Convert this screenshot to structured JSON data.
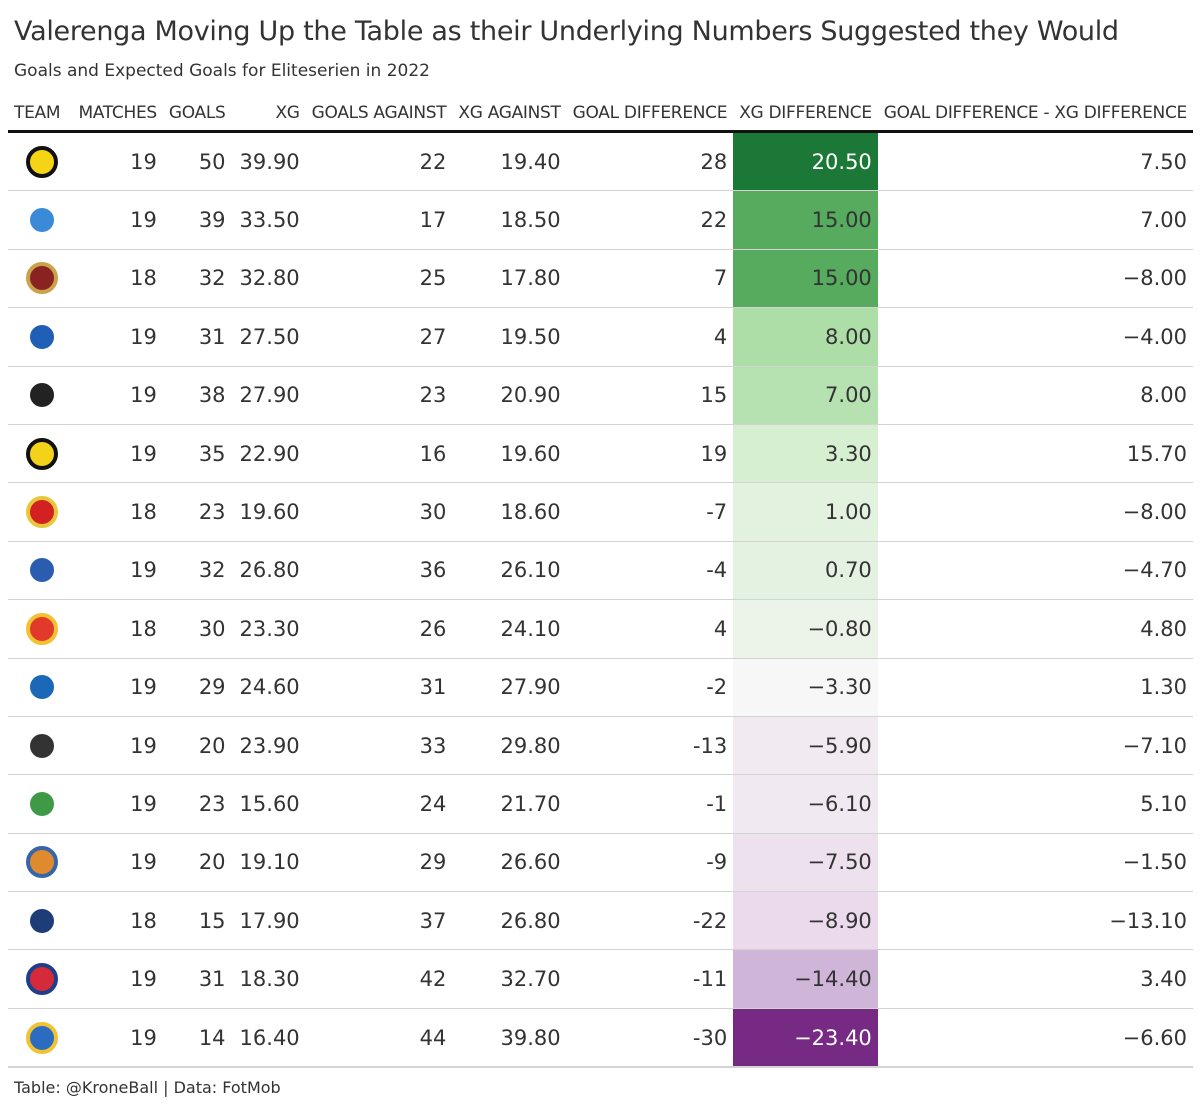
{
  "chart_data": {
    "type": "table",
    "title": "Valerenga Moving Up the Table as their Underlying Numbers Suggested they Would",
    "subtitle": "Goals and Expected Goals for Eliteserien in 2022",
    "columns": [
      "TEAM",
      "MATCHES",
      "GOALS",
      "XG",
      "GOALS AGAINST",
      "XG AGAINST",
      "GOAL DIFFERENCE",
      "XG DIFFERENCE",
      "GOAL DIFFERENCE - XG DIFFERENCE"
    ],
    "rows": [
      {
        "logo": "bodo-glimt-logo",
        "color": "#f5d415",
        "ring": "#111",
        "matches": "19",
        "goals": "50",
        "xg": "39.90",
        "ga": "22",
        "xga": "19.40",
        "gd": "28",
        "xgd": "20.50",
        "diff": "7.50"
      },
      {
        "logo": "molde-logo",
        "color": "#3a8ad8",
        "ring": "#fff",
        "matches": "19",
        "goals": "39",
        "xg": "33.50",
        "ga": "17",
        "xga": "18.50",
        "gd": "22",
        "xgd": "15.00",
        "diff": "7.00"
      },
      {
        "logo": "viking-logo",
        "color": "#8b2222",
        "ring": "#c9a24a",
        "matches": "18",
        "goals": "32",
        "xg": "32.80",
        "ga": "25",
        "xga": "17.80",
        "gd": "7",
        "xgd": "15.00",
        "diff": "−8.00"
      },
      {
        "logo": "valerenga-logo",
        "color": "#1f5fb5",
        "ring": "#fff",
        "matches": "19",
        "goals": "31",
        "xg": "27.50",
        "ga": "27",
        "xga": "19.50",
        "gd": "4",
        "xgd": "8.00",
        "diff": "−4.00"
      },
      {
        "logo": "rosenborg-logo",
        "color": "#222",
        "ring": "#fff",
        "matches": "19",
        "goals": "38",
        "xg": "27.90",
        "ga": "23",
        "xga": "20.90",
        "gd": "15",
        "xgd": "7.00",
        "diff": "8.00"
      },
      {
        "logo": "lillestrom-logo",
        "color": "#f3d21a",
        "ring": "#111",
        "matches": "19",
        "goals": "35",
        "xg": "22.90",
        "ga": "16",
        "xga": "19.60",
        "gd": "19",
        "xgd": "3.30",
        "diff": "15.70"
      },
      {
        "logo": "tromso-logo",
        "color": "#d32020",
        "ring": "#e8c83a",
        "matches": "18",
        "goals": "23",
        "xg": "19.60",
        "ga": "30",
        "xga": "18.60",
        "gd": "-7",
        "xgd": "1.00",
        "diff": "−8.00"
      },
      {
        "logo": "sarpsborg-logo",
        "color": "#2a5db0",
        "ring": "#fff",
        "matches": "19",
        "goals": "32",
        "xg": "26.80",
        "ga": "36",
        "xga": "26.10",
        "gd": "-4",
        "xgd": "0.70",
        "diff": "−4.70"
      },
      {
        "logo": "stromsgodset-logo",
        "color": "#e23a2a",
        "ring": "#f2c230",
        "matches": "18",
        "goals": "30",
        "xg": "23.30",
        "ga": "26",
        "xga": "24.10",
        "gd": "4",
        "xgd": "−0.80",
        "diff": "4.80"
      },
      {
        "logo": "haugesund-logo",
        "color": "#1b67b8",
        "ring": "#fff",
        "matches": "19",
        "goals": "29",
        "xg": "24.60",
        "ga": "31",
        "xga": "27.90",
        "gd": "-2",
        "xgd": "−3.30",
        "diff": "1.30"
      },
      {
        "logo": "odd-logo",
        "color": "#333",
        "ring": "#fff",
        "matches": "19",
        "goals": "20",
        "xg": "23.90",
        "ga": "33",
        "xga": "29.80",
        "gd": "-13",
        "xgd": "−5.90",
        "diff": "−7.10"
      },
      {
        "logo": "hamkam-logo",
        "color": "#3f9a48",
        "ring": "#fff",
        "matches": "19",
        "goals": "23",
        "xg": "15.60",
        "ga": "24",
        "xga": "21.70",
        "gd": "-1",
        "xgd": "−6.10",
        "diff": "5.10"
      },
      {
        "logo": "aalesund-logo",
        "color": "#e08a30",
        "ring": "#3766a8",
        "matches": "19",
        "goals": "20",
        "xg": "19.10",
        "ga": "29",
        "xga": "26.60",
        "gd": "-9",
        "xgd": "−7.50",
        "diff": "−1.50"
      },
      {
        "logo": "kristiansund-logo",
        "color": "#1e3c78",
        "ring": "#fff",
        "matches": "18",
        "goals": "15",
        "xg": "17.90",
        "ga": "37",
        "xga": "26.80",
        "gd": "-22",
        "xgd": "−8.90",
        "diff": "−13.10"
      },
      {
        "logo": "sandefjord-logo",
        "color": "#d42a3a",
        "ring": "#1f3f8a",
        "matches": "19",
        "goals": "31",
        "xg": "18.30",
        "ga": "42",
        "xga": "32.70",
        "gd": "-11",
        "xgd": "−14.40",
        "diff": "3.40"
      },
      {
        "logo": "jerv-logo",
        "color": "#2b6cc0",
        "ring": "#f1c232",
        "matches": "19",
        "goals": "14",
        "xg": "16.40",
        "ga": "44",
        "xga": "39.80",
        "gd": "-30",
        "xgd": "−23.40",
        "diff": "−6.60"
      }
    ],
    "xgd_color_scale": {
      "type": "diverging",
      "min": -23.4,
      "max": 20.5,
      "colors": [
        "#762a83",
        "#c2a5cf",
        "#e7d4e8",
        "#f7f7f7",
        "#d9f0d3",
        "#a6dba0",
        "#5aae61",
        "#1b7837"
      ]
    }
  },
  "footer": "Table: @KroneBall | Data: FotMob"
}
